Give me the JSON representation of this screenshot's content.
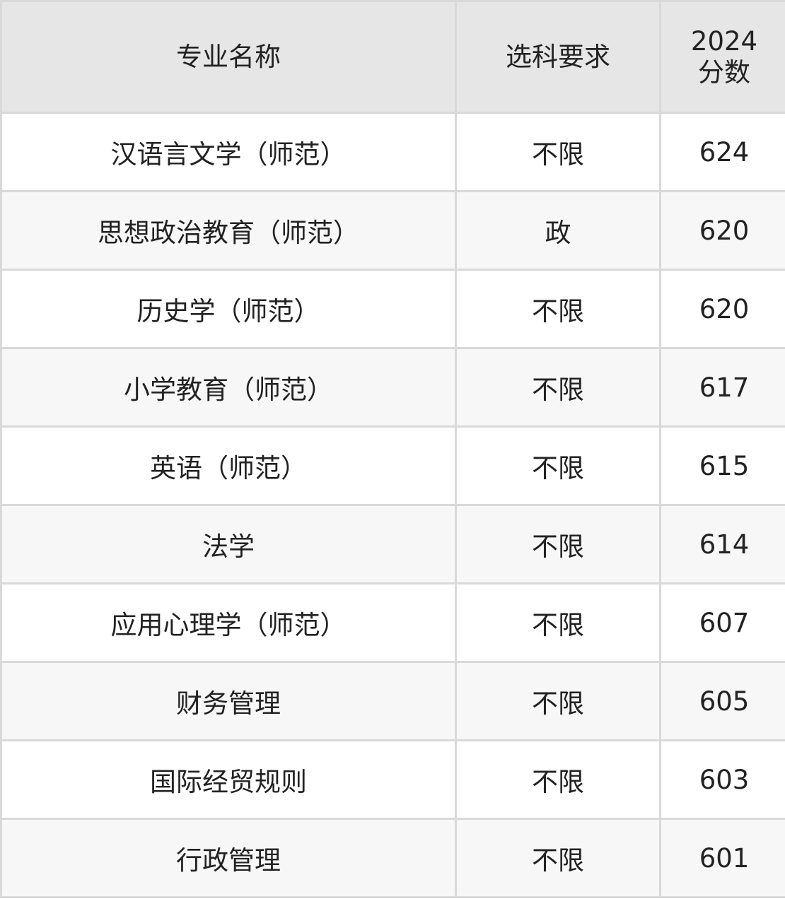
{
  "headers": {
    "major": "专业名称",
    "subject": "选科要求",
    "score_year": "2024",
    "score_label": "分数"
  },
  "rows": [
    {
      "major": "汉语言文学（师范）",
      "subject": "不限",
      "score": "624"
    },
    {
      "major": "思想政治教育（师范）",
      "subject": "政",
      "score": "620"
    },
    {
      "major": "历史学（师范）",
      "subject": "不限",
      "score": "620"
    },
    {
      "major": "小学教育（师范）",
      "subject": "不限",
      "score": "617"
    },
    {
      "major": "英语（师范）",
      "subject": "不限",
      "score": "615"
    },
    {
      "major": "法学",
      "subject": "不限",
      "score": "614"
    },
    {
      "major": "应用心理学（师范）",
      "subject": "不限",
      "score": "607"
    },
    {
      "major": "财务管理",
      "subject": "不限",
      "score": "605"
    },
    {
      "major": "国际经贸规则",
      "subject": "不限",
      "score": "603"
    },
    {
      "major": "行政管理",
      "subject": "不限",
      "score": "601"
    }
  ]
}
